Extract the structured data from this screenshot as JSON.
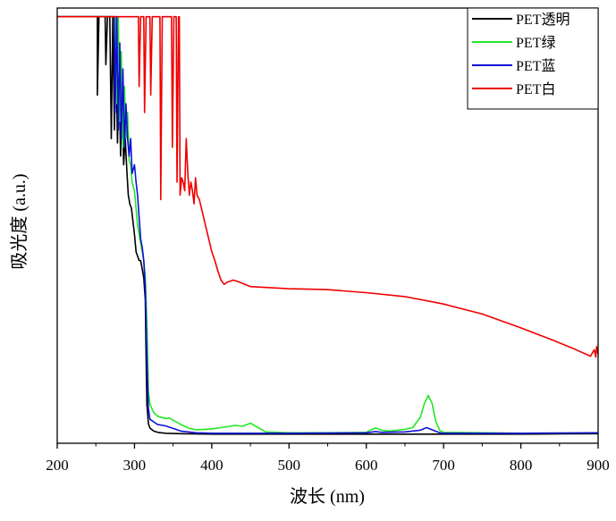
{
  "chart_data": {
    "type": "line",
    "title": "",
    "xlabel": "波长 (nm)",
    "ylabel": "吸光度 (a.u.)",
    "xlim": [
      200,
      900
    ],
    "ylim": [
      0,
      1.0
    ],
    "x_ticks": [
      "200",
      "300",
      "400",
      "500",
      "600",
      "700",
      "800",
      "900"
    ],
    "y_ticks_shown": false,
    "grid": false,
    "legend_position": "top-right",
    "series": [
      {
        "name": "PET透明",
        "color": "#000000",
        "points": [
          [
            200,
            0.98
          ],
          [
            252,
            0.98
          ],
          [
            252,
            0.8
          ],
          [
            254,
            0.98
          ],
          [
            262,
            0.98
          ],
          [
            263,
            0.87
          ],
          [
            265,
            0.98
          ],
          [
            268,
            0.98
          ],
          [
            270,
            0.7
          ],
          [
            272,
            0.98
          ],
          [
            274,
            0.72
          ],
          [
            276,
            0.9
          ],
          [
            278,
            0.69
          ],
          [
            280,
            0.85
          ],
          [
            282,
            0.66
          ],
          [
            284,
            0.8
          ],
          [
            286,
            0.64
          ],
          [
            288,
            0.7
          ],
          [
            290,
            0.63
          ],
          [
            292,
            0.57
          ],
          [
            294,
            0.55
          ],
          [
            296,
            0.54
          ],
          [
            300,
            0.48
          ],
          [
            302,
            0.44
          ],
          [
            304,
            0.43
          ],
          [
            306,
            0.42
          ],
          [
            308,
            0.42
          ],
          [
            310,
            0.4
          ],
          [
            312,
            0.38
          ],
          [
            314,
            0.33
          ],
          [
            315,
            0.2
          ],
          [
            316,
            0.09
          ],
          [
            318,
            0.045
          ],
          [
            320,
            0.035
          ],
          [
            325,
            0.028
          ],
          [
            330,
            0.025
          ],
          [
            340,
            0.023
          ],
          [
            360,
            0.022
          ],
          [
            400,
            0.021
          ],
          [
            500,
            0.021
          ],
          [
            600,
            0.021
          ],
          [
            700,
            0.021
          ],
          [
            800,
            0.021
          ],
          [
            900,
            0.022
          ]
        ]
      },
      {
        "name": "PET绿",
        "color": "#22e822",
        "points": [
          [
            200,
            0.98
          ],
          [
            276,
            0.98
          ],
          [
            277,
            0.78
          ],
          [
            279,
            0.98
          ],
          [
            281,
            0.74
          ],
          [
            283,
            0.9
          ],
          [
            285,
            0.68
          ],
          [
            287,
            0.82
          ],
          [
            289,
            0.7
          ],
          [
            291,
            0.76
          ],
          [
            293,
            0.65
          ],
          [
            295,
            0.64
          ],
          [
            297,
            0.6
          ],
          [
            300,
            0.58
          ],
          [
            302,
            0.54
          ],
          [
            304,
            0.5
          ],
          [
            306,
            0.48
          ],
          [
            308,
            0.46
          ],
          [
            310,
            0.44
          ],
          [
            312,
            0.42
          ],
          [
            314,
            0.38
          ],
          [
            316,
            0.28
          ],
          [
            318,
            0.12
          ],
          [
            320,
            0.09
          ],
          [
            325,
            0.07
          ],
          [
            330,
            0.062
          ],
          [
            340,
            0.057
          ],
          [
            345,
            0.058
          ],
          [
            350,
            0.053
          ],
          [
            360,
            0.043
          ],
          [
            370,
            0.035
          ],
          [
            380,
            0.031
          ],
          [
            400,
            0.033
          ],
          [
            420,
            0.038
          ],
          [
            430,
            0.041
          ],
          [
            440,
            0.039
          ],
          [
            450,
            0.046
          ],
          [
            460,
            0.036
          ],
          [
            470,
            0.026
          ],
          [
            500,
            0.024
          ],
          [
            550,
            0.024
          ],
          [
            600,
            0.025
          ],
          [
            605,
            0.03
          ],
          [
            612,
            0.035
          ],
          [
            620,
            0.03
          ],
          [
            630,
            0.028
          ],
          [
            650,
            0.032
          ],
          [
            660,
            0.036
          ],
          [
            670,
            0.06
          ],
          [
            675,
            0.09
          ],
          [
            680,
            0.11
          ],
          [
            685,
            0.092
          ],
          [
            690,
            0.05
          ],
          [
            695,
            0.03
          ],
          [
            700,
            0.025
          ],
          [
            750,
            0.024
          ],
          [
            800,
            0.023
          ],
          [
            900,
            0.024
          ]
        ]
      },
      {
        "name": "PET蓝",
        "color": "#1010d8",
        "points": [
          [
            200,
            0.98
          ],
          [
            274,
            0.98
          ],
          [
            275,
            0.76
          ],
          [
            277,
            0.98
          ],
          [
            279,
            0.72
          ],
          [
            281,
            0.92
          ],
          [
            283,
            0.7
          ],
          [
            285,
            0.86
          ],
          [
            287,
            0.68
          ],
          [
            289,
            0.78
          ],
          [
            291,
            0.7
          ],
          [
            293,
            0.66
          ],
          [
            295,
            0.7
          ],
          [
            297,
            0.62
          ],
          [
            300,
            0.64
          ],
          [
            302,
            0.6
          ],
          [
            304,
            0.57
          ],
          [
            306,
            0.52
          ],
          [
            308,
            0.47
          ],
          [
            310,
            0.45
          ],
          [
            312,
            0.42
          ],
          [
            314,
            0.36
          ],
          [
            316,
            0.2
          ],
          [
            318,
            0.08
          ],
          [
            320,
            0.055
          ],
          [
            330,
            0.043
          ],
          [
            340,
            0.04
          ],
          [
            350,
            0.034
          ],
          [
            360,
            0.028
          ],
          [
            380,
            0.024
          ],
          [
            400,
            0.023
          ],
          [
            500,
            0.023
          ],
          [
            600,
            0.024
          ],
          [
            612,
            0.027
          ],
          [
            620,
            0.025
          ],
          [
            650,
            0.026
          ],
          [
            670,
            0.03
          ],
          [
            678,
            0.036
          ],
          [
            685,
            0.031
          ],
          [
            695,
            0.024
          ],
          [
            700,
            0.023
          ],
          [
            800,
            0.023
          ],
          [
            900,
            0.024
          ]
        ]
      },
      {
        "name": "PET白",
        "color": "#ee0000",
        "points": [
          [
            200,
            0.98
          ],
          [
            305,
            0.98
          ],
          [
            306,
            0.82
          ],
          [
            308,
            0.98
          ],
          [
            312,
            0.98
          ],
          [
            313,
            0.76
          ],
          [
            315,
            0.98
          ],
          [
            320,
            0.98
          ],
          [
            321,
            0.8
          ],
          [
            323,
            0.98
          ],
          [
            333,
            0.98
          ],
          [
            334,
            0.56
          ],
          [
            336,
            0.98
          ],
          [
            348,
            0.98
          ],
          [
            349,
            0.68
          ],
          [
            351,
            0.98
          ],
          [
            354,
            0.98
          ],
          [
            355,
            0.6
          ],
          [
            357,
            0.98
          ],
          [
            358,
            0.98
          ],
          [
            359,
            0.57
          ],
          [
            361,
            0.61
          ],
          [
            363,
            0.6
          ],
          [
            365,
            0.58
          ],
          [
            367,
            0.7
          ],
          [
            369,
            0.62
          ],
          [
            371,
            0.57
          ],
          [
            373,
            0.6
          ],
          [
            375,
            0.58
          ],
          [
            377,
            0.55
          ],
          [
            379,
            0.61
          ],
          [
            381,
            0.57
          ],
          [
            384,
            0.56
          ],
          [
            388,
            0.53
          ],
          [
            392,
            0.5
          ],
          [
            396,
            0.47
          ],
          [
            400,
            0.44
          ],
          [
            404,
            0.42
          ],
          [
            408,
            0.395
          ],
          [
            412,
            0.375
          ],
          [
            416,
            0.365
          ],
          [
            420,
            0.37
          ],
          [
            428,
            0.375
          ],
          [
            436,
            0.37
          ],
          [
            450,
            0.36
          ],
          [
            500,
            0.355
          ],
          [
            550,
            0.353
          ],
          [
            600,
            0.346
          ],
          [
            650,
            0.337
          ],
          [
            700,
            0.32
          ],
          [
            750,
            0.297
          ],
          [
            800,
            0.265
          ],
          [
            840,
            0.238
          ],
          [
            870,
            0.216
          ],
          [
            890,
            0.2
          ],
          [
            895,
            0.215
          ],
          [
            897,
            0.198
          ],
          [
            898,
            0.222
          ],
          [
            900,
            0.205
          ]
        ]
      }
    ]
  }
}
